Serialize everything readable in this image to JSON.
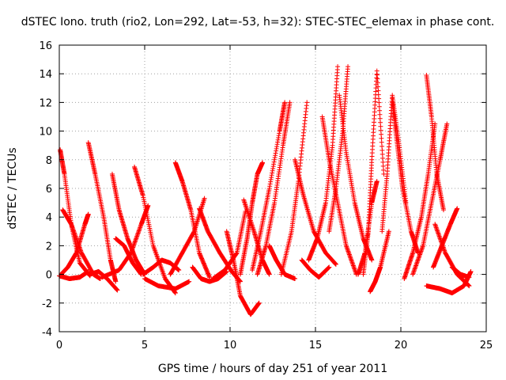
{
  "chart_data": {
    "type": "scatter",
    "title": "dSTEC Iono. truth (rio2, Lon=292, Lat=-53, h=32): STEC-STEC_elemax in phase cont.",
    "xlabel": "GPS time / hours of day 251 of year 2011",
    "ylabel": "dSTEC  / TECUs",
    "xlim": [
      0,
      25
    ],
    "ylim": [
      -4,
      16
    ],
    "xticks": [
      0,
      5,
      10,
      15,
      20,
      25
    ],
    "yticks": [
      -4,
      -2,
      0,
      2,
      4,
      6,
      8,
      10,
      12,
      14,
      16
    ],
    "grid": true,
    "marker": "+",
    "color": "#ff0000",
    "series": [
      {
        "x": [
          0.05,
          0.3,
          0.7,
          1.2,
          1.8
        ],
        "y": [
          8.7,
          7.0,
          3.5,
          0.8,
          -0.1
        ]
      },
      {
        "x": [
          0.1,
          0.5,
          1.0,
          1.5,
          1.7
        ],
        "y": [
          0.0,
          0.5,
          1.5,
          3.5,
          4.2
        ]
      },
      {
        "x": [
          0.2,
          0.7,
          1.3,
          2.0,
          2.4
        ],
        "y": [
          4.5,
          3.5,
          1.5,
          0.0,
          -0.3
        ]
      },
      {
        "x": [
          0.0,
          0.6,
          1.2,
          1.7
        ],
        "y": [
          -0.1,
          -0.3,
          -0.2,
          0.2
        ]
      },
      {
        "x": [
          1.7,
          2.1,
          2.6,
          3.0,
          3.3
        ],
        "y": [
          9.2,
          7.0,
          4.0,
          1.0,
          -0.5
        ]
      },
      {
        "x": [
          1.8,
          2.3,
          2.8,
          3.4
        ],
        "y": [
          0.0,
          0.2,
          -0.3,
          -1.1
        ]
      },
      {
        "x": [
          3.1,
          3.5,
          4.0,
          4.5,
          5.0
        ],
        "y": [
          7.0,
          4.5,
          2.5,
          1.0,
          0.0
        ]
      },
      {
        "x": [
          3.3,
          3.8,
          4.3,
          4.8
        ],
        "y": [
          2.5,
          2.0,
          0.8,
          0.0
        ]
      },
      {
        "x": [
          2.5,
          3.5,
          4.2,
          4.8,
          5.2
        ],
        "y": [
          -0.2,
          0.3,
          1.5,
          3.5,
          4.8
        ]
      },
      {
        "x": [
          4.4,
          4.9,
          5.5,
          6.2,
          6.8
        ],
        "y": [
          7.5,
          5.5,
          2.0,
          -0.3,
          -1.3
        ]
      },
      {
        "x": [
          4.9,
          5.5,
          6.0,
          6.5,
          7.0
        ],
        "y": [
          0.0,
          0.5,
          1.0,
          0.8,
          0.3
        ]
      },
      {
        "x": [
          5.0,
          5.8,
          6.8,
          7.6
        ],
        "y": [
          -0.3,
          -0.8,
          -1.0,
          -0.5
        ]
      },
      {
        "x": [
          6.8,
          7.2,
          7.7,
          8.2,
          8.8
        ],
        "y": [
          7.8,
          6.5,
          4.5,
          1.5,
          -0.2
        ]
      },
      {
        "x": [
          6.5,
          7.2,
          7.9,
          8.5
        ],
        "y": [
          0.0,
          1.5,
          3.0,
          5.3
        ]
      },
      {
        "x": [
          7.8,
          8.3,
          8.8,
          9.3,
          9.8
        ],
        "y": [
          0.5,
          -0.3,
          -0.5,
          -0.3,
          0.2
        ]
      },
      {
        "x": [
          8.2,
          8.7,
          9.4,
          10.1,
          10.6
        ],
        "y": [
          4.6,
          3.0,
          1.5,
          0.2,
          -0.5
        ]
      },
      {
        "x": [
          9.0,
          9.7,
          10.4,
          10.9
        ],
        "y": [
          -0.3,
          0.3,
          1.5,
          4.4
        ]
      },
      {
        "x": [
          9.8,
          10.2,
          10.6,
          11.2,
          11.7
        ],
        "y": [
          3.0,
          1.0,
          -1.5,
          -2.8,
          -2.0
        ]
      },
      {
        "x": [
          10.6,
          11.0,
          11.3,
          11.6,
          11.9
        ],
        "y": [
          0.0,
          2.5,
          5.0,
          7.0,
          7.8
        ]
      },
      {
        "x": [
          10.8,
          11.4,
          11.9,
          12.3
        ],
        "y": [
          5.2,
          3.0,
          1.0,
          0.0
        ]
      },
      {
        "x": [
          11.3,
          11.8,
          12.3,
          12.9,
          13.2
        ],
        "y": [
          0.3,
          3.0,
          6.0,
          10.0,
          12.0
        ]
      },
      {
        "x": [
          11.6,
          12.1,
          12.6,
          13.1,
          13.5
        ],
        "y": [
          0.0,
          2.0,
          5.0,
          9.0,
          12.0
        ]
      },
      {
        "x": [
          12.3,
          12.7,
          13.2,
          13.8
        ],
        "y": [
          2.0,
          1.0,
          0.0,
          -0.3
        ]
      },
      {
        "x": [
          13.0,
          13.6,
          14.0,
          14.5
        ],
        "y": [
          0.0,
          3.0,
          6.5,
          12.0
        ]
      },
      {
        "x": [
          13.8,
          14.3,
          14.9,
          15.6,
          16.2
        ],
        "y": [
          8.0,
          5.5,
          3.0,
          1.5,
          0.7
        ]
      },
      {
        "x": [
          14.2,
          14.7,
          15.2,
          15.8
        ],
        "y": [
          1.0,
          0.3,
          -0.2,
          0.5
        ]
      },
      {
        "x": [
          14.6,
          15.1,
          15.6,
          16.0,
          16.3
        ],
        "y": [
          1.0,
          2.5,
          5.0,
          9.0,
          14.5
        ]
      },
      {
        "x": [
          15.4,
          15.8,
          16.3,
          16.8,
          17.4
        ],
        "y": [
          11.0,
          8.0,
          5.0,
          2.0,
          0.0
        ]
      },
      {
        "x": [
          15.8,
          16.2,
          16.6,
          16.9
        ],
        "y": [
          3.0,
          6.0,
          10.0,
          14.5
        ]
      },
      {
        "x": [
          16.4,
          16.8,
          17.3,
          17.8,
          18.3
        ],
        "y": [
          12.5,
          8.5,
          5.0,
          2.5,
          1.0
        ]
      },
      {
        "x": [
          17.5,
          17.9,
          18.3,
          18.6
        ],
        "y": [
          0.0,
          1.5,
          5.0,
          6.5
        ]
      },
      {
        "x": [
          17.8,
          18.1,
          18.3,
          18.6,
          19.0
        ],
        "y": [
          0.0,
          3.0,
          8.0,
          14.2,
          7.0
        ]
      },
      {
        "x": [
          18.2,
          18.5,
          18.8,
          19.3
        ],
        "y": [
          -1.2,
          -0.5,
          0.5,
          3.0
        ]
      },
      {
        "x": [
          18.9,
          19.2,
          19.5,
          19.9,
          20.3
        ],
        "y": [
          3.0,
          7.0,
          12.5,
          9.0,
          5.0
        ]
      },
      {
        "x": [
          19.5,
          19.8,
          20.1,
          20.6,
          21.0
        ],
        "y": [
          12.0,
          9.0,
          6.0,
          3.0,
          1.5
        ]
      },
      {
        "x": [
          20.2,
          20.7,
          21.2,
          21.6,
          22.0
        ],
        "y": [
          -0.3,
          1.5,
          4.0,
          7.0,
          10.5
        ]
      },
      {
        "x": [
          21.5,
          21.8,
          22.1,
          22.5
        ],
        "y": [
          13.9,
          11.0,
          7.0,
          4.5
        ]
      },
      {
        "x": [
          20.7,
          21.3,
          21.8,
          22.3,
          22.7
        ],
        "y": [
          0.0,
          2.0,
          5.0,
          8.0,
          10.5
        ]
      },
      {
        "x": [
          22.0,
          22.6,
          23.3,
          24.0
        ],
        "y": [
          3.5,
          1.5,
          0.0,
          -0.8
        ]
      },
      {
        "x": [
          21.5,
          22.3,
          23.0,
          23.7,
          24.1
        ],
        "y": [
          -0.8,
          -1.0,
          -1.3,
          -0.8,
          0.2
        ]
      },
      {
        "x": [
          21.9,
          22.4,
          22.9,
          23.3
        ],
        "y": [
          0.5,
          2.0,
          3.5,
          4.6
        ]
      },
      {
        "x": [
          23.0,
          23.5,
          24.0
        ],
        "y": [
          0.5,
          0.0,
          -0.2
        ]
      }
    ]
  }
}
